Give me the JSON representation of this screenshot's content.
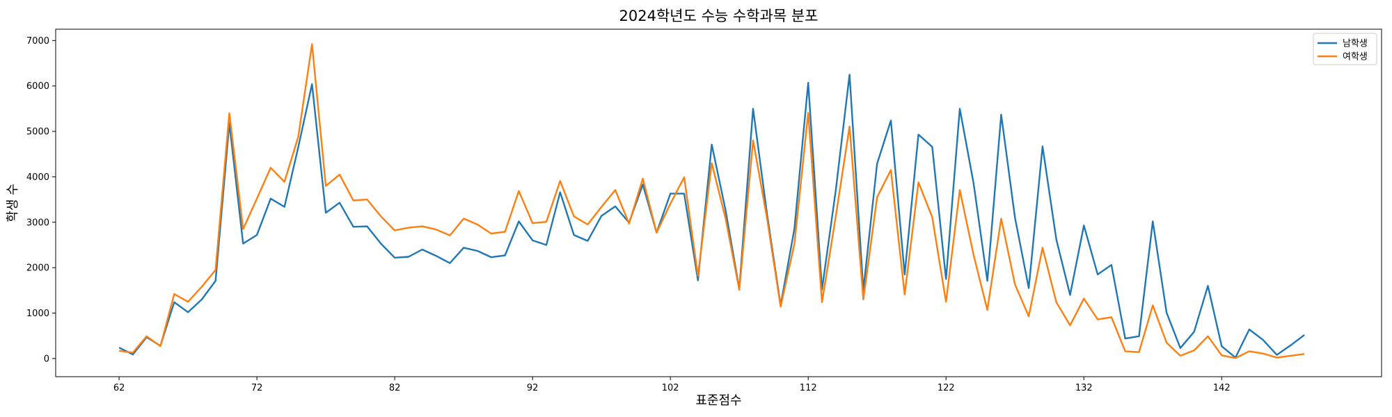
{
  "chart_data": {
    "type": "line",
    "title": "2024학년도 수능 수학과목 분포",
    "xlabel": "표준점수",
    "ylabel": "학생 수",
    "xlim": [
      57.4,
      153.6
    ],
    "ylim": [
      -400,
      7250
    ],
    "xticks": [
      62,
      72,
      82,
      92,
      102,
      112,
      122,
      132,
      142
    ],
    "yticks": [
      0,
      1000,
      2000,
      3000,
      4000,
      5000,
      6000,
      7000
    ],
    "grid": false,
    "legend_position": "top-right",
    "x": [
      62,
      63,
      64,
      65,
      66,
      67,
      68,
      69,
      70,
      71,
      72,
      73,
      74,
      75,
      76,
      77,
      78,
      79,
      80,
      81,
      82,
      83,
      84,
      85,
      86,
      87,
      88,
      89,
      90,
      91,
      92,
      93,
      94,
      95,
      96,
      97,
      98,
      99,
      100,
      101,
      102,
      103,
      104,
      105,
      106,
      107,
      108,
      109,
      110,
      111,
      112,
      113,
      114,
      115,
      116,
      117,
      118,
      119,
      120,
      121,
      122,
      123,
      124,
      125,
      126,
      127,
      128,
      129,
      130,
      131,
      132,
      133,
      134,
      135,
      136,
      137,
      138,
      139,
      140,
      141,
      142,
      143,
      144,
      145,
      146,
      147,
      148
    ],
    "series": [
      {
        "name": "남학생",
        "color": "#1f77b4",
        "values": [
          240,
          90,
          470,
          280,
          1240,
          1020,
          1300,
          1710,
          5180,
          2530,
          2720,
          3520,
          3340,
          4650,
          6040,
          3210,
          3430,
          2900,
          2910,
          2530,
          2220,
          2240,
          2400,
          2260,
          2100,
          2440,
          2370,
          2230,
          2270,
          3020,
          2600,
          2500,
          3660,
          2720,
          2590,
          3140,
          3350,
          2990,
          3830,
          2770,
          3630,
          3630,
          1720,
          4710,
          3270,
          1530,
          5500,
          3210,
          1170,
          2860,
          6070,
          1520,
          3700,
          6250,
          1500,
          4290,
          5240,
          1850,
          4930,
          4660,
          1750,
          5500,
          3860,
          1710,
          5370,
          3100,
          1550,
          4670,
          2620,
          1400,
          2930,
          1850,
          2060,
          440,
          490,
          3020,
          1010,
          230,
          590,
          1600,
          270,
          20,
          640,
          410,
          80,
          290,
          520
        ]
      },
      {
        "name": "여학생",
        "color": "#ff7f0e",
        "values": [
          170,
          130,
          490,
          270,
          1420,
          1250,
          1580,
          1950,
          5400,
          2850,
          3520,
          4200,
          3890,
          4880,
          6920,
          3800,
          4050,
          3480,
          3500,
          3130,
          2820,
          2880,
          2910,
          2840,
          2710,
          3080,
          2950,
          2750,
          2790,
          3690,
          2980,
          3010,
          3910,
          3130,
          2950,
          3340,
          3710,
          2970,
          3960,
          2770,
          3410,
          3990,
          1820,
          4300,
          3090,
          1510,
          4800,
          3110,
          1140,
          2530,
          5410,
          1240,
          3130,
          5110,
          1300,
          3550,
          4150,
          1410,
          3880,
          3110,
          1250,
          3710,
          2280,
          1070,
          3080,
          1630,
          930,
          2440,
          1240,
          730,
          1320,
          860,
          910,
          160,
          140,
          1170,
          350,
          60,
          180,
          490,
          70,
          10,
          160,
          110,
          20,
          60,
          100
        ]
      }
    ]
  }
}
